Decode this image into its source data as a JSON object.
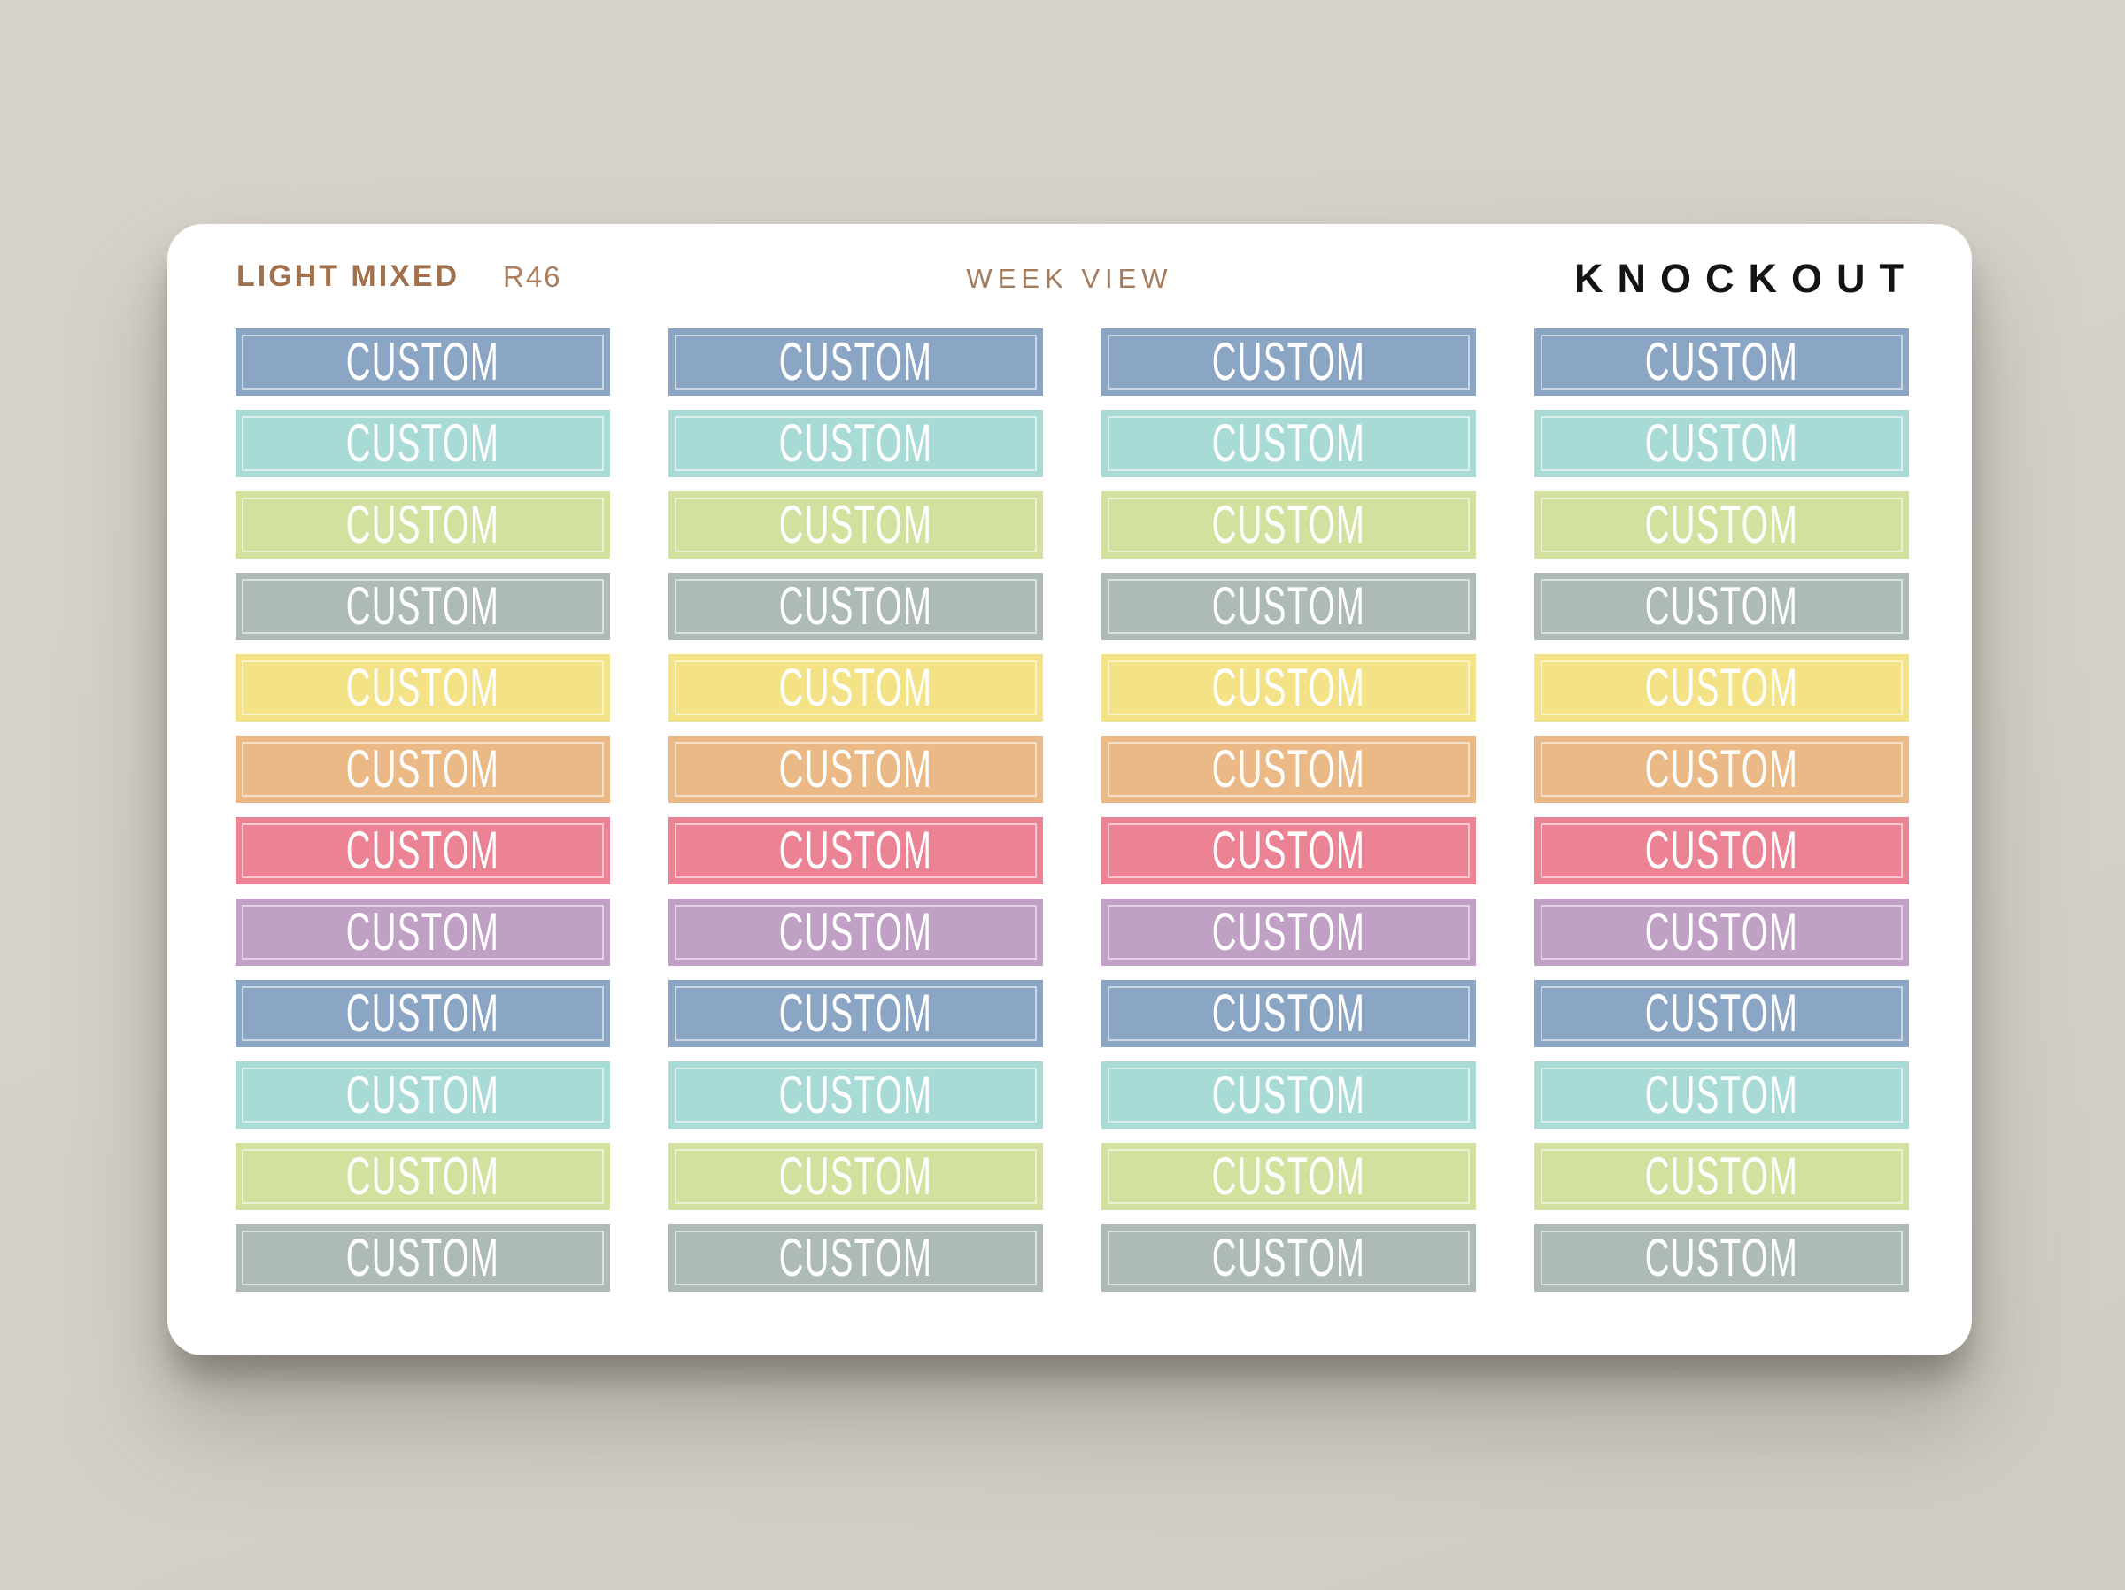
{
  "page": {
    "background_color": "#d5d1ca"
  },
  "card": {
    "background_color": "#ffffff"
  },
  "header": {
    "collection_name": "LIGHT MIXED",
    "sku": "R46",
    "view_label": "WEEK VIEW",
    "brand": "KNOCKOUT",
    "accent_color": "#a1714e",
    "brand_color": "#141414"
  },
  "sticker_label": "CUSTOM",
  "grid": {
    "columns": 4,
    "rows": 12,
    "sticker_text_color": "#ffffff",
    "inner_border_color": "rgba(255,255,255,0.55)",
    "row_colors": [
      {
        "name": "blue",
        "hex": "#8BA6C5"
      },
      {
        "name": "teal",
        "hex": "#A9DBD6"
      },
      {
        "name": "green",
        "hex": "#D2E19E"
      },
      {
        "name": "gray",
        "hex": "#ADBAB8"
      },
      {
        "name": "yellow",
        "hex": "#F4E287"
      },
      {
        "name": "orange",
        "hex": "#EBB985"
      },
      {
        "name": "pink",
        "hex": "#EC8394"
      },
      {
        "name": "purple",
        "hex": "#C1A0C5"
      },
      {
        "name": "blue",
        "hex": "#8BA6C5"
      },
      {
        "name": "teal",
        "hex": "#A9DBD6"
      },
      {
        "name": "green",
        "hex": "#D2E19E"
      },
      {
        "name": "gray",
        "hex": "#ADBAB8"
      }
    ]
  }
}
